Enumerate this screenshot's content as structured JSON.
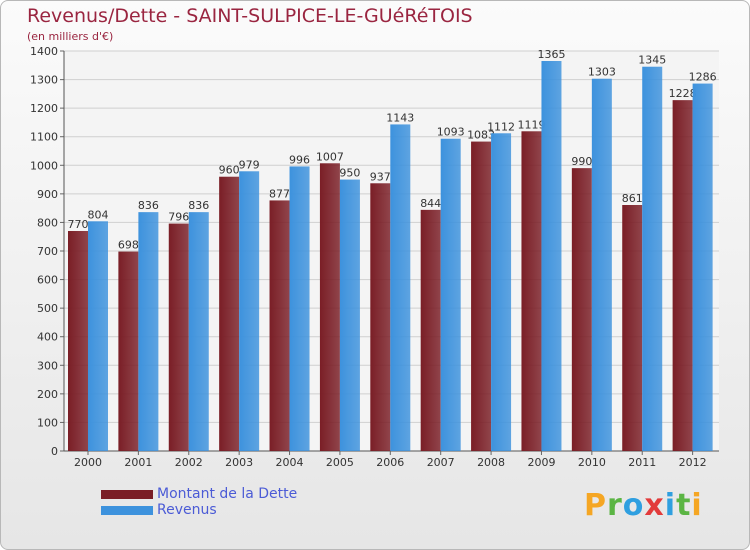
{
  "header": {
    "title": "Revenus/Dette - SAINT-SULPICE-LE-GUéRéTOIS",
    "subtitle": "(en milliers d'€)"
  },
  "logo": {
    "letters": [
      "P",
      "r",
      "o",
      "x",
      "i",
      "t",
      "i"
    ],
    "colors": [
      "#f5a623",
      "#5bb544",
      "#2f9fe0",
      "#e23b3b",
      "#2f9fe0",
      "#5bb544",
      "#f5a623"
    ]
  },
  "colors": {
    "dette": "#7a1e26",
    "revenus": "#3d92dd",
    "grid": "#cfcfcf",
    "label": "#333333"
  },
  "chart_data": {
    "type": "bar",
    "title": "Revenus/Dette - SAINT-SULPICE-LE-GUéRéTOIS",
    "ylabel": "(en milliers d'€)",
    "xlabel": "",
    "ylim": [
      0,
      1400
    ],
    "yticks": [
      0,
      100,
      200,
      300,
      400,
      500,
      600,
      700,
      800,
      900,
      1000,
      1100,
      1200,
      1300,
      1400
    ],
    "grid": true,
    "legend_position": "bottom-left",
    "categories": [
      "2000",
      "2001",
      "2002",
      "2003",
      "2004",
      "2005",
      "2006",
      "2007",
      "2008",
      "2009",
      "2010",
      "2011",
      "2012"
    ],
    "series": [
      {
        "name": "Montant de la Dette",
        "values": [
          770,
          698,
          796,
          960,
          877,
          1007,
          937,
          844,
          1083,
          1119,
          990,
          861,
          1228
        ]
      },
      {
        "name": "Revenus",
        "values": [
          804,
          836,
          836,
          979,
          996,
          950,
          1143,
          1093,
          1112,
          1365,
          1303,
          1345,
          1286
        ]
      }
    ]
  }
}
